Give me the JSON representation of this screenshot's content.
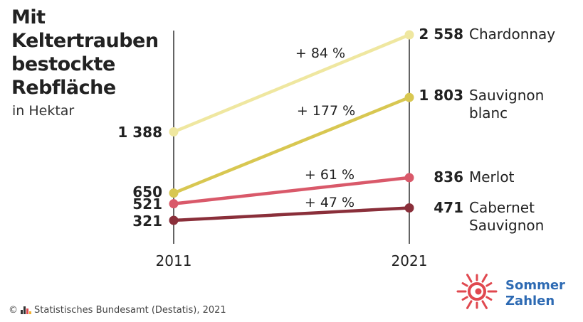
{
  "chart_data": {
    "type": "line",
    "title_lines": [
      "Mit",
      "Keltertrauben",
      "bestockte",
      "Rebfläche"
    ],
    "subtitle": "in Hektar",
    "x": [
      "2011",
      "2021"
    ],
    "series": [
      {
        "name": "Chardonnay",
        "name_lines": [
          "Chardonnay"
        ],
        "values": [
          1388,
          2558
        ],
        "start_label": "1 388",
        "end_label": "2 558",
        "change": "+ 84 %",
        "color": "#efe7a0"
      },
      {
        "name": "Sauvignon blanc",
        "name_lines": [
          "Sauvignon",
          "blanc"
        ],
        "values": [
          650,
          1803
        ],
        "start_label": "650",
        "end_label": "1 803",
        "change": "+ 177 %",
        "color": "#d8c751"
      },
      {
        "name": "Merlot",
        "name_lines": [
          "Merlot"
        ],
        "values": [
          521,
          836
        ],
        "start_label": "521",
        "end_label": "836",
        "change": "+ 61 %",
        "color": "#d9596a"
      },
      {
        "name": "Cabernet Sauvignon",
        "name_lines": [
          "Cabernet",
          "Sauvignon"
        ],
        "values": [
          321,
          471
        ],
        "start_label": "321",
        "end_label": "471",
        "change": "+ 47 %",
        "color": "#8a2f3a"
      }
    ]
  },
  "footer": {
    "source": "© Statistisches Bundesamt (Destatis), 2021"
  },
  "logo": {
    "line1": "Sommer",
    "line2": "Zahlen",
    "color": "#e0484f",
    "text_color": "#2d6ab3"
  }
}
